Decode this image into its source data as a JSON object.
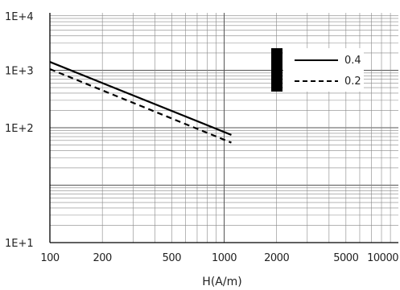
{
  "chart_data": {
    "type": "line",
    "xlabel": "H(A/m)",
    "ylabel": "",
    "x_scale": "log",
    "y_scale": "log",
    "xlim": [
      100,
      10000
    ],
    "ylim": [
      1,
      10000
    ],
    "x_tick_labels": [
      "100",
      "200",
      "500",
      "1000",
      "2000",
      "5000",
      "10000"
    ],
    "y_tick_labels": [
      "1E+1",
      "1E+2",
      "1E+3",
      "1E+4"
    ],
    "grid": true,
    "legend_position": "top-right",
    "series": [
      {
        "name": "0.4",
        "line_style": "solid",
        "color": "#000000",
        "x": [
          100,
          1100
        ],
        "y": [
          1400,
          75
        ]
      },
      {
        "name": "0.2",
        "line_style": "dashed",
        "color": "#000000",
        "x": [
          100,
          1100
        ],
        "y": [
          1050,
          55
        ]
      }
    ]
  }
}
